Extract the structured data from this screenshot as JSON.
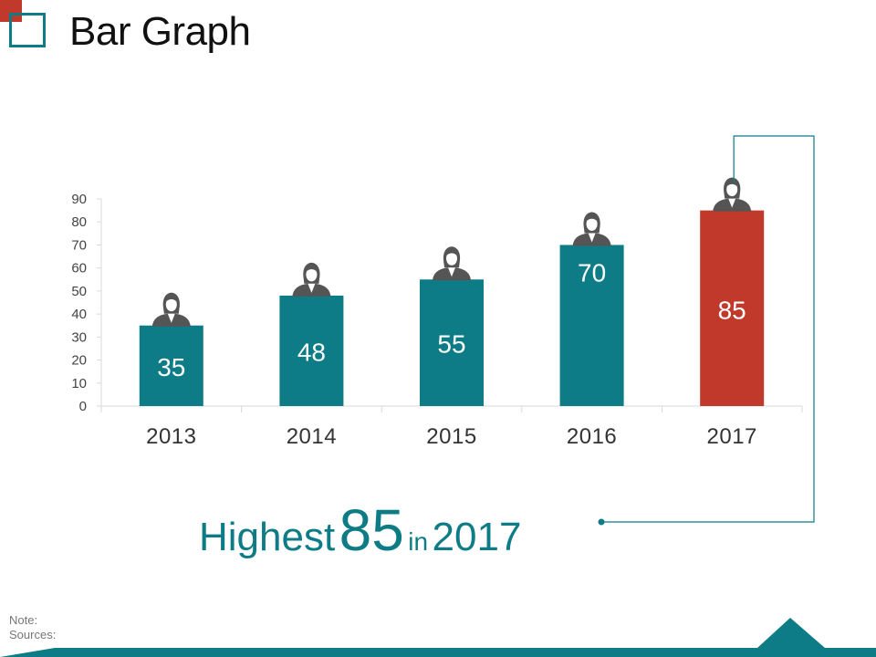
{
  "page": {
    "title": "Bar Graph",
    "highlight": {
      "prefix": "Highest",
      "value": "85",
      "mid": "in",
      "year": "2017"
    },
    "notes": {
      "note": "Note:",
      "sources": "Sources:"
    }
  },
  "colors": {
    "teal": "#0e7c86",
    "red": "#c0392b",
    "icon": "#555555",
    "axis": "#d9d9d9"
  },
  "icons": {
    "bar_icon": "businesswoman-avatar-icon"
  },
  "chart_data": {
    "type": "bar",
    "categories": [
      "2013",
      "2014",
      "2015",
      "2016",
      "2017"
    ],
    "values": [
      35,
      48,
      55,
      70,
      85
    ],
    "data_labels": [
      "35",
      "48",
      "55",
      "70",
      "85"
    ],
    "highlight_index": 4,
    "ylim": [
      0,
      90
    ],
    "yticks": [
      0,
      10,
      20,
      30,
      40,
      50,
      60,
      70,
      80,
      90
    ],
    "title": "",
    "xlabel": "",
    "ylabel": "",
    "grid": false,
    "legend": "none"
  }
}
